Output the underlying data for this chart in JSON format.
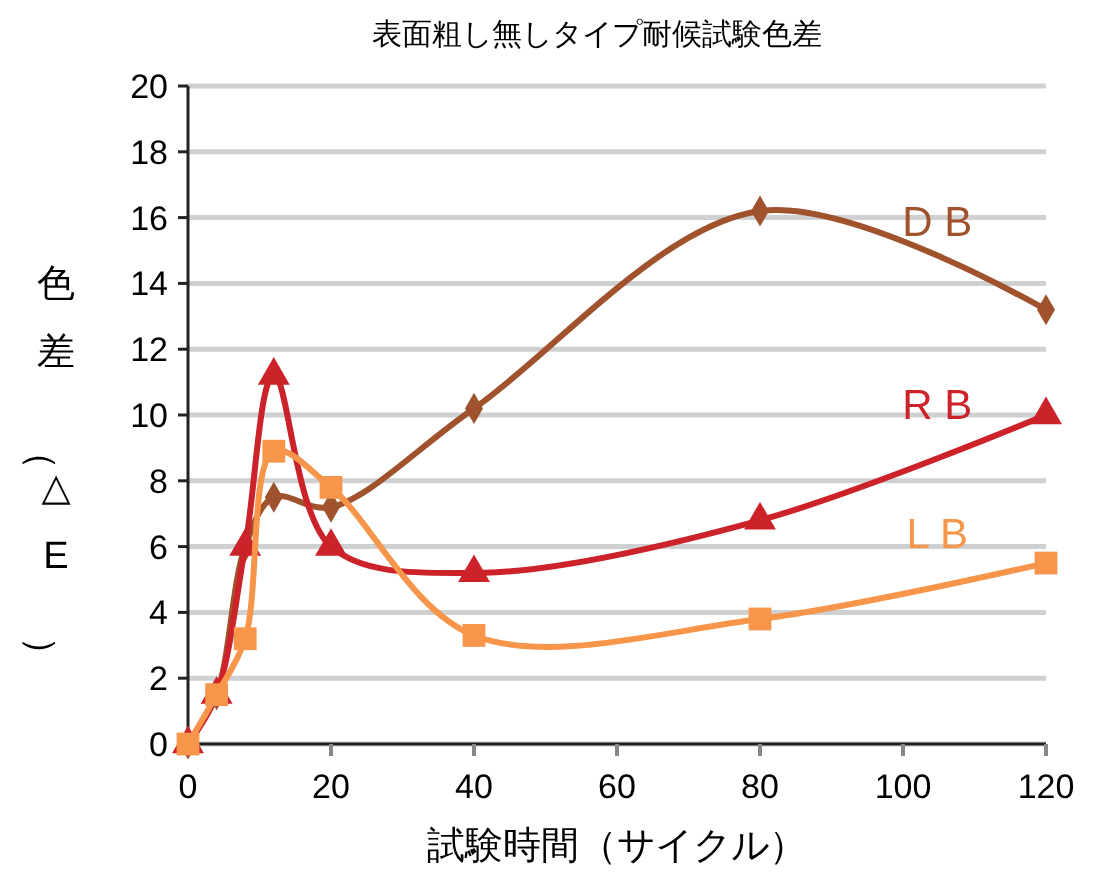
{
  "chart_data": {
    "type": "line",
    "title": "表面粗し無しタイプ耐候試験色差",
    "xlabel": "試験時間（サイクル）",
    "ylabel": "色差（△E）",
    "x": [
      0,
      4,
      8,
      12,
      20,
      40,
      80,
      120
    ],
    "series": [
      {
        "name": "D B",
        "color": "#a0522d",
        "marker": "diamond",
        "values": [
          0,
          1.5,
          6,
          7.5,
          7.2,
          10.2,
          16.2,
          13.2
        ]
      },
      {
        "name": "R B",
        "color": "#cc2229",
        "marker": "triangle",
        "values": [
          0,
          1.5,
          6,
          11.2,
          6,
          5.2,
          6.8,
          10
        ]
      },
      {
        "name": "L B",
        "color": "#f7964a",
        "marker": "square",
        "values": [
          0,
          1.5,
          3.2,
          8.9,
          7.8,
          3.3,
          3.8,
          5.5
        ]
      }
    ],
    "xlim": [
      0,
      120
    ],
    "xticks": [
      0,
      20,
      40,
      60,
      80,
      100,
      120
    ],
    "ylim": [
      0,
      20
    ],
    "yticks": [
      0,
      2,
      4,
      6,
      8,
      10,
      12,
      14,
      16,
      18,
      20
    ],
    "grid": "y",
    "legend": false
  }
}
